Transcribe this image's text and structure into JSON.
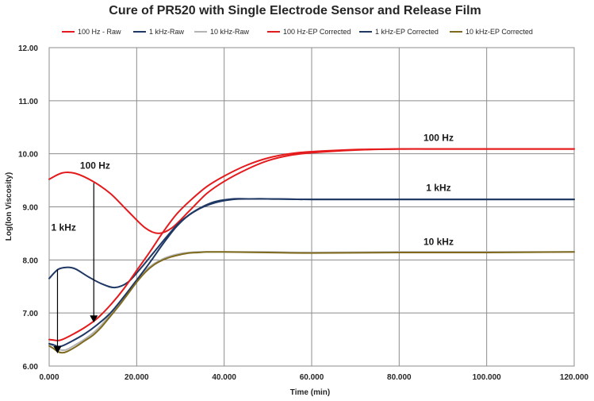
{
  "chart_data": {
    "type": "line",
    "title": "Cure of PR520 with Single Electrode Sensor and Release Film",
    "xlabel": "Time (min)",
    "ylabel": "Log(Ion Viscosity)",
    "xlim": [
      0,
      120
    ],
    "ylim": [
      6,
      12
    ],
    "x_ticks": [
      "0.000",
      "20.000",
      "40.000",
      "60.000",
      "80.000",
      "100.000",
      "120.000"
    ],
    "y_ticks": [
      "6.00",
      "7.00",
      "8.00",
      "9.00",
      "10.00",
      "11.00",
      "12.00"
    ],
    "grid": true,
    "legend_position": "top",
    "series": [
      {
        "name": "100 Hz - Raw",
        "color": "#e41a1c",
        "x": [
          0,
          3,
          6,
          10,
          14,
          18,
          22,
          25,
          28,
          32,
          36,
          40,
          45,
          50,
          55,
          60,
          70,
          80,
          90,
          100,
          110,
          120
        ],
        "y": [
          9.52,
          9.64,
          9.63,
          9.48,
          9.25,
          8.92,
          8.6,
          8.5,
          8.6,
          8.92,
          9.25,
          9.48,
          9.7,
          9.87,
          9.97,
          10.02,
          10.07,
          10.09,
          10.09,
          10.09,
          10.09,
          10.09
        ]
      },
      {
        "name": "1 kHz-Raw",
        "color": "#1f3864",
        "x": [
          0,
          2,
          4,
          6,
          9,
          12,
          15,
          18,
          21,
          24,
          27,
          30,
          34,
          38,
          42,
          46,
          50,
          60,
          80,
          100,
          120
        ],
        "y": [
          7.65,
          7.82,
          7.86,
          7.83,
          7.68,
          7.55,
          7.48,
          7.58,
          7.85,
          8.15,
          8.45,
          8.72,
          8.95,
          9.08,
          9.14,
          9.15,
          9.15,
          9.14,
          9.14,
          9.14,
          9.14
        ]
      },
      {
        "name": "10 kHz-Raw",
        "color": "#b4b4b4",
        "x": [
          0,
          1,
          2,
          3,
          4,
          6,
          8,
          10,
          12,
          14,
          16,
          18,
          20,
          22,
          24,
          26,
          28,
          30,
          32,
          34,
          36,
          38,
          40,
          50,
          60,
          80,
          100,
          120
        ],
        "y": [
          6.42,
          6.38,
          6.32,
          6.3,
          6.31,
          6.4,
          6.5,
          6.62,
          6.78,
          6.98,
          7.18,
          7.4,
          7.62,
          7.8,
          7.93,
          8.02,
          8.08,
          8.12,
          8.14,
          8.15,
          8.15,
          8.15,
          8.15,
          8.15,
          8.14,
          8.15,
          8.15,
          8.15
        ]
      },
      {
        "name": "100 Hz-EP Corrected",
        "color": "#e41a1c",
        "x": [
          0,
          1,
          2,
          3,
          5,
          8,
          11,
          14,
          17,
          20,
          23,
          26,
          29,
          32,
          36,
          40,
          45,
          50,
          55,
          60,
          70,
          80,
          90,
          100,
          110,
          120
        ],
        "y": [
          6.5,
          6.49,
          6.48,
          6.5,
          6.58,
          6.72,
          6.9,
          7.15,
          7.45,
          7.8,
          8.15,
          8.52,
          8.85,
          9.1,
          9.38,
          9.58,
          9.78,
          9.92,
          10.0,
          10.04,
          10.08,
          10.09,
          10.09,
          10.09,
          10.09,
          10.09
        ]
      },
      {
        "name": "1 kHz-EP Corrected",
        "color": "#1f3864",
        "x": [
          0,
          1,
          2,
          3,
          5,
          8,
          11,
          14,
          17,
          20,
          23,
          26,
          29,
          32,
          35,
          38,
          42,
          46,
          50,
          60,
          80,
          100,
          120
        ],
        "y": [
          6.42,
          6.4,
          6.37,
          6.38,
          6.46,
          6.6,
          6.78,
          7.0,
          7.3,
          7.62,
          7.95,
          8.3,
          8.62,
          8.85,
          9.0,
          9.1,
          9.15,
          9.15,
          9.15,
          9.14,
          9.14,
          9.14,
          9.14
        ]
      },
      {
        "name": "10 kHz-EP Corrected",
        "color": "#7f6a1e",
        "x": [
          0,
          1,
          2,
          3,
          4,
          6,
          8,
          10,
          12,
          14,
          16,
          18,
          20,
          22,
          24,
          26,
          28,
          30,
          32,
          34,
          36,
          38,
          40,
          50,
          60,
          80,
          100,
          120
        ],
        "y": [
          6.38,
          6.33,
          6.27,
          6.25,
          6.27,
          6.36,
          6.47,
          6.58,
          6.74,
          6.94,
          7.14,
          7.36,
          7.58,
          7.77,
          7.91,
          8.0,
          8.06,
          8.1,
          8.13,
          8.14,
          8.15,
          8.15,
          8.15,
          8.14,
          8.13,
          8.14,
          8.14,
          8.15
        ]
      }
    ],
    "annotations": [
      {
        "text": "100 Hz",
        "x": 89,
        "y": 10.24
      },
      {
        "text": "1 kHz",
        "x": 89,
        "y": 9.3
      },
      {
        "text": "10 kHz",
        "x": 89,
        "y": 8.28
      },
      {
        "text": "100 Hz",
        "x": 10.5,
        "y": 9.72
      },
      {
        "text": "1 kHz",
        "x": 3.3,
        "y": 8.55
      }
    ],
    "arrows": [
      {
        "x": 10.2,
        "y_from": 9.45,
        "y_to": 6.82
      },
      {
        "x": 1.9,
        "y_from": 7.82,
        "y_to": 6.24
      }
    ]
  }
}
